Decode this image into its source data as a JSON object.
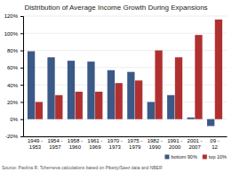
{
  "chart_data": {
    "type": "bar",
    "title": "Distribution of Average Income Growth During Expansions",
    "categories": [
      "1949 -\n1953",
      "1954 -\n1957",
      "1958 -\n1960",
      "1961 -\n1969",
      "1970 -\n1973",
      "1975 -\n1979",
      "1982 -\n1990",
      "1991 -\n2000",
      "2001 -\n2007",
      "09 -\n12"
    ],
    "series": [
      {
        "name": "bottom 90%",
        "color": "#3a5987",
        "values": [
          79,
          72,
          68,
          67,
          57,
          55,
          20,
          28,
          2,
          -8
        ]
      },
      {
        "name": "top 10%",
        "color": "#b03030",
        "values": [
          20,
          28,
          32,
          32,
          42,
          45,
          80,
          72,
          98,
          116
        ]
      }
    ],
    "ylim": [
      -20,
      120
    ],
    "yticks": [
      {
        "value": -20,
        "label": "-20%"
      },
      {
        "value": 0,
        "label": "0%"
      },
      {
        "value": 20,
        "label": "20%"
      },
      {
        "value": 40,
        "label": "40%"
      },
      {
        "value": 60,
        "label": "60%"
      },
      {
        "value": 80,
        "label": "80%"
      },
      {
        "value": 100,
        "label": "100%"
      },
      {
        "value": 120,
        "label": "120%"
      }
    ],
    "grid": true,
    "legend": "lower right",
    "annotations": [
      "Source: Pavlina R. Tcherneva calculations based on Piketty/Saez data and NBER"
    ]
  }
}
